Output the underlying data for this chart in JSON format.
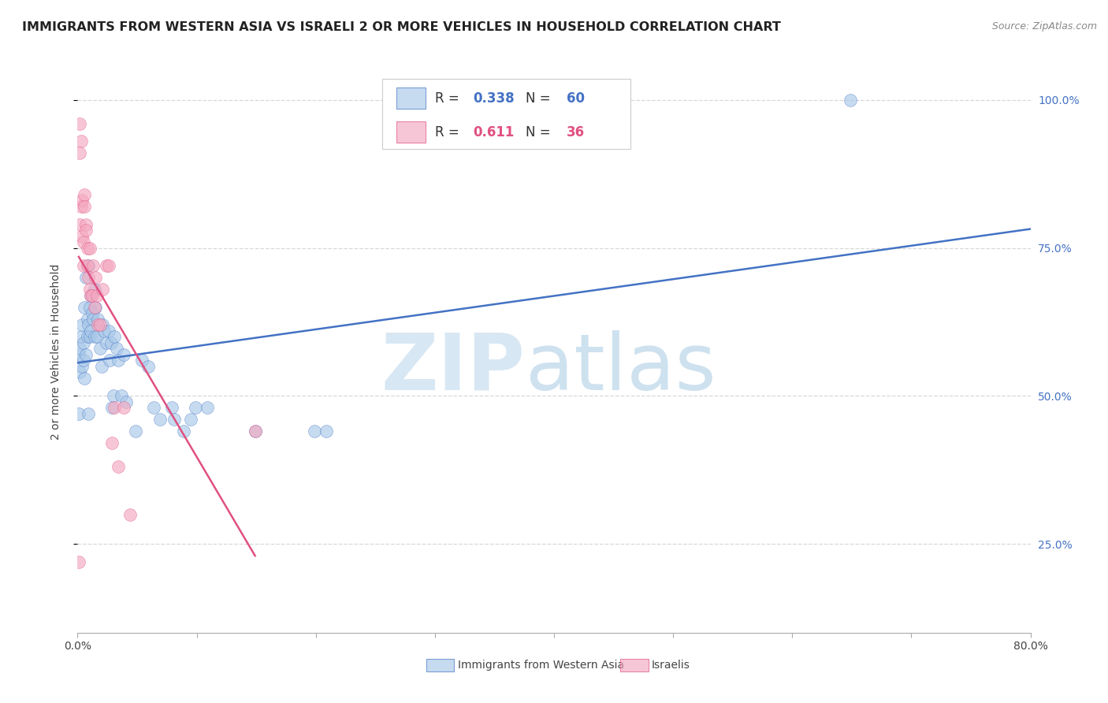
{
  "title": "IMMIGRANTS FROM WESTERN ASIA VS ISRAELI 2 OR MORE VEHICLES IN HOUSEHOLD CORRELATION CHART",
  "source": "Source: ZipAtlas.com",
  "ylabel": "2 or more Vehicles in Household",
  "xlim": [
    0.0,
    0.8
  ],
  "ylim": [
    0.1,
    1.05
  ],
  "legend_label1": "Immigrants from Western Asia",
  "legend_label2": "Israelis",
  "R1": "0.338",
  "N1": "60",
  "R2": "0.611",
  "N2": "36",
  "color_blue": "#a8c8e8",
  "color_pink": "#f4a8c0",
  "line_color_blue": "#4472c4",
  "line_color_pink": "#e05080",
  "blue_points": [
    [
      0.001,
      0.57
    ],
    [
      0.002,
      0.58
    ],
    [
      0.002,
      0.54
    ],
    [
      0.003,
      0.6
    ],
    [
      0.004,
      0.62
    ],
    [
      0.004,
      0.55
    ],
    [
      0.005,
      0.59
    ],
    [
      0.005,
      0.56
    ],
    [
      0.006,
      0.53
    ],
    [
      0.006,
      0.65
    ],
    [
      0.007,
      0.7
    ],
    [
      0.007,
      0.57
    ],
    [
      0.008,
      0.63
    ],
    [
      0.008,
      0.6
    ],
    [
      0.009,
      0.72
    ],
    [
      0.009,
      0.62
    ],
    [
      0.01,
      0.65
    ],
    [
      0.01,
      0.6
    ],
    [
      0.011,
      0.67
    ],
    [
      0.011,
      0.61
    ],
    [
      0.012,
      0.64
    ],
    [
      0.013,
      0.63
    ],
    [
      0.014,
      0.68
    ],
    [
      0.014,
      0.6
    ],
    [
      0.015,
      0.65
    ],
    [
      0.016,
      0.6
    ],
    [
      0.017,
      0.63
    ],
    [
      0.019,
      0.58
    ],
    [
      0.02,
      0.55
    ],
    [
      0.021,
      0.62
    ],
    [
      0.022,
      0.61
    ],
    [
      0.024,
      0.59
    ],
    [
      0.026,
      0.61
    ],
    [
      0.027,
      0.56
    ],
    [
      0.028,
      0.59
    ],
    [
      0.029,
      0.48
    ],
    [
      0.03,
      0.5
    ],
    [
      0.031,
      0.6
    ],
    [
      0.033,
      0.58
    ],
    [
      0.034,
      0.56
    ],
    [
      0.037,
      0.5
    ],
    [
      0.039,
      0.57
    ],
    [
      0.041,
      0.49
    ],
    [
      0.049,
      0.44
    ],
    [
      0.054,
      0.56
    ],
    [
      0.059,
      0.55
    ],
    [
      0.064,
      0.48
    ],
    [
      0.069,
      0.46
    ],
    [
      0.079,
      0.48
    ],
    [
      0.081,
      0.46
    ],
    [
      0.089,
      0.44
    ],
    [
      0.095,
      0.46
    ],
    [
      0.099,
      0.48
    ],
    [
      0.109,
      0.48
    ],
    [
      0.149,
      0.44
    ],
    [
      0.199,
      0.44
    ],
    [
      0.209,
      0.44
    ],
    [
      0.001,
      0.47
    ],
    [
      0.009,
      0.47
    ],
    [
      0.649,
      1.0
    ]
  ],
  "pink_points": [
    [
      0.001,
      0.22
    ],
    [
      0.002,
      0.79
    ],
    [
      0.003,
      0.82
    ],
    [
      0.003,
      0.93
    ],
    [
      0.004,
      0.77
    ],
    [
      0.004,
      0.83
    ],
    [
      0.005,
      0.76
    ],
    [
      0.005,
      0.72
    ],
    [
      0.006,
      0.84
    ],
    [
      0.006,
      0.82
    ],
    [
      0.007,
      0.79
    ],
    [
      0.007,
      0.78
    ],
    [
      0.008,
      0.75
    ],
    [
      0.008,
      0.72
    ],
    [
      0.009,
      0.7
    ],
    [
      0.01,
      0.68
    ],
    [
      0.01,
      0.75
    ],
    [
      0.011,
      0.67
    ],
    [
      0.012,
      0.67
    ],
    [
      0.013,
      0.72
    ],
    [
      0.014,
      0.65
    ],
    [
      0.015,
      0.7
    ],
    [
      0.016,
      0.67
    ],
    [
      0.017,
      0.62
    ],
    [
      0.019,
      0.62
    ],
    [
      0.021,
      0.68
    ],
    [
      0.024,
      0.72
    ],
    [
      0.026,
      0.72
    ],
    [
      0.029,
      0.42
    ],
    [
      0.031,
      0.48
    ],
    [
      0.034,
      0.38
    ],
    [
      0.039,
      0.48
    ],
    [
      0.044,
      0.3
    ],
    [
      0.002,
      0.96
    ],
    [
      0.002,
      0.91
    ],
    [
      0.149,
      0.44
    ]
  ],
  "watermark_zip": "ZIP",
  "watermark_atlas": "atlas",
  "background_color": "#ffffff",
  "grid_color": "#d8d8d8",
  "title_fontsize": 11.5,
  "axis_label_fontsize": 10,
  "tick_fontsize": 10,
  "legend_fontsize": 12
}
